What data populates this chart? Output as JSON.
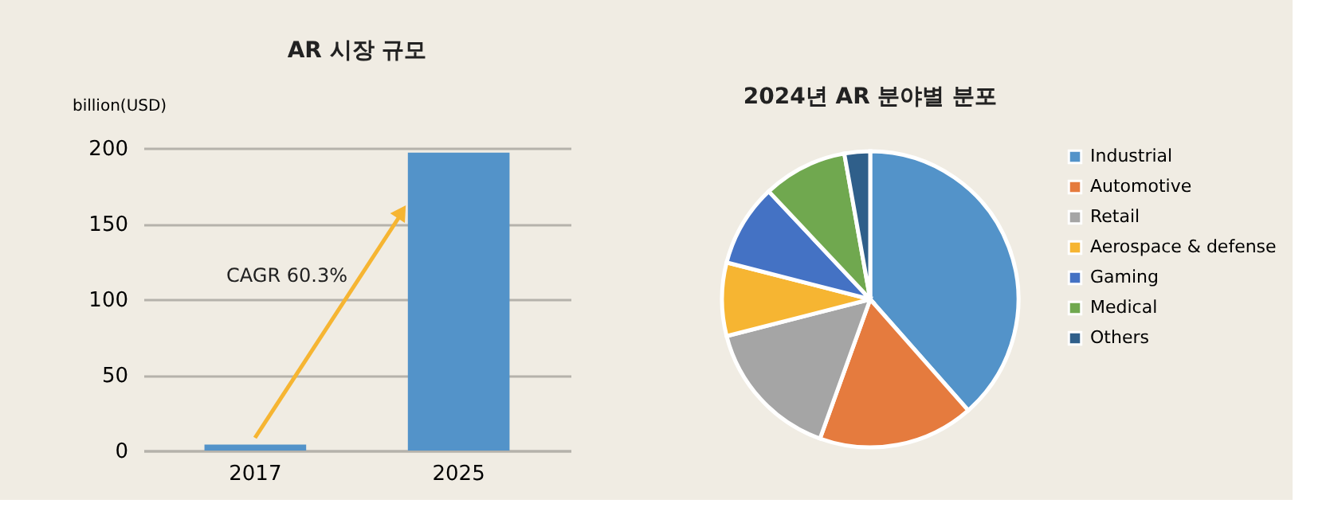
{
  "chart_data": [
    {
      "type": "bar",
      "title": "AR 시장 규모",
      "ylabel": "billion(USD)",
      "categories": [
        "2017",
        "2025"
      ],
      "values": [
        4,
        197
      ],
      "color": "#5393c9",
      "ylim": [
        0,
        200
      ],
      "yticks": [
        0,
        50,
        100,
        150,
        200
      ],
      "grid": "y",
      "annotations": [
        "CAGR 60.3%"
      ]
    },
    {
      "type": "pie",
      "title": "2024년 AR 분야별 분포",
      "categories": [
        "Industrial",
        "Automotive",
        "Retail",
        "Aerospace & defense",
        "Gaming",
        "Medical",
        "Others"
      ],
      "values": [
        38.5,
        17,
        15.5,
        8,
        9,
        9.2,
        2.8
      ],
      "colors": [
        "#5393c9",
        "#e57b3e",
        "#a5a5a5",
        "#f6b532",
        "#4472c4",
        "#70a84f",
        "#2f5f8a"
      ],
      "legend": "right"
    }
  ]
}
